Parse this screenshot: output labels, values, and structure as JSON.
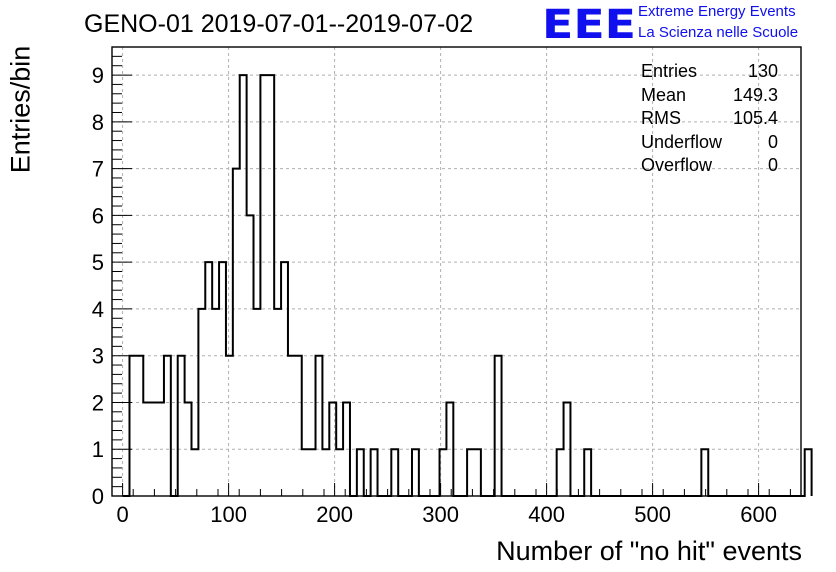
{
  "header": {
    "title": "GENO-01 2019-07-01--2019-07-02",
    "logo_letters": "EEE",
    "logo_line1": "Extreme Energy Events",
    "logo_line2": "La Scienza nelle Scuole"
  },
  "colors": {
    "logo_blue": "#1010ee",
    "histogram_line": "#000000",
    "grid": "#b0b0b0",
    "background": "#ffffff"
  },
  "stats": {
    "rows": [
      {
        "label": "Entries",
        "value": "130"
      },
      {
        "label": "Mean",
        "value": "149.3"
      },
      {
        "label": "RMS",
        "value": "105.4"
      },
      {
        "label": "Underflow",
        "value": "0"
      },
      {
        "label": "Overflow",
        "value": "0"
      }
    ]
  },
  "chart_data": {
    "type": "bar",
    "style": "step histogram",
    "title": "GENO-01 2019-07-01--2019-07-02",
    "xlabel": "Number of \"no hit\" events",
    "ylabel": "Entries/bin",
    "xlim": [
      -10,
      640
    ],
    "ylim": [
      0,
      9.6
    ],
    "x_ticks": [
      0,
      100,
      200,
      300,
      400,
      500,
      600
    ],
    "y_ticks": [
      0,
      1,
      2,
      3,
      4,
      5,
      6,
      7,
      8,
      9
    ],
    "grid": true,
    "bin_width": 6.5,
    "bin_start": 0,
    "values": [
      0,
      3,
      3,
      2,
      2,
      2,
      3,
      0,
      3,
      2,
      1,
      4,
      5,
      4,
      5,
      3,
      7,
      9,
      6,
      4,
      9,
      9,
      4,
      5,
      3,
      3,
      1,
      1,
      3,
      1,
      2,
      1,
      2,
      0,
      1,
      0,
      1,
      0,
      0,
      1,
      0,
      0,
      1,
      0,
      0,
      0,
      1,
      2,
      0,
      0,
      1,
      1,
      0,
      0,
      3,
      0,
      0,
      0,
      0,
      0,
      0,
      0,
      0,
      1,
      2,
      0,
      0,
      1,
      0,
      0,
      0,
      0,
      0,
      0,
      0,
      0,
      0,
      0,
      0,
      0,
      0,
      0,
      0,
      0,
      1,
      0,
      0,
      0,
      0,
      0,
      0,
      0,
      0,
      0,
      0,
      0,
      0,
      0,
      0,
      1
    ]
  }
}
